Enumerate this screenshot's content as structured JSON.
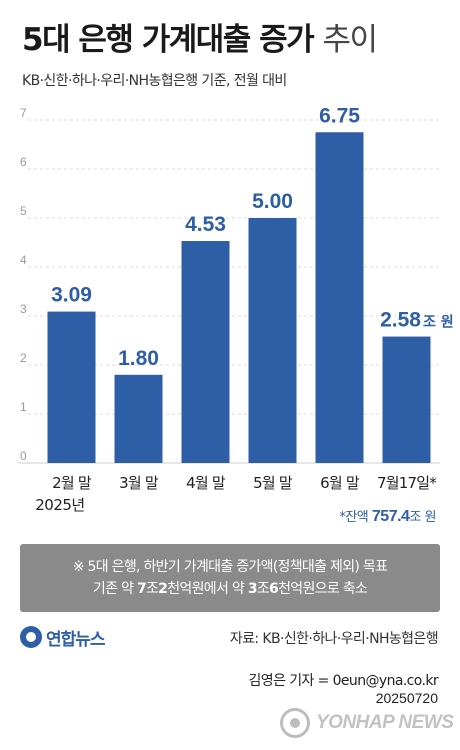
{
  "header": {
    "title_bold": "5대 은행 가계대출 증가",
    "title_light": "추이",
    "subtitle": "KB·신한·하나·우리·NH농협은행 기준, 전월 대비"
  },
  "chart_data": {
    "type": "bar",
    "categories": [
      "2월 말",
      "3월 말",
      "4월 말",
      "5월 말",
      "6월 말",
      "7월17일*"
    ],
    "values": [
      3.09,
      1.8,
      4.53,
      5.0,
      6.75,
      2.58
    ],
    "value_labels": [
      "3.09",
      "1.80",
      "4.53",
      "5.00",
      "6.75",
      "2.58"
    ],
    "last_value_unit": "조 원",
    "yticks": [
      "0",
      "1",
      "2",
      "3",
      "4",
      "5",
      "6",
      "7"
    ],
    "ylim": [
      0,
      7
    ],
    "grid": true,
    "bar_color": "#2e5ea6",
    "year_label": "2025년"
  },
  "balance": {
    "prefix": "*잔액 ",
    "amount": "757.4",
    "unit": "조 원"
  },
  "note": {
    "line1": "※ 5대 은행, 하반기 가계대출 증가액(정책대출 제외) 목표",
    "line2_a": "기존 약 ",
    "line2_b": "7",
    "line2_c": "조",
    "line2_d": "2",
    "line2_e": "천억원에서 약 ",
    "line2_f": "3",
    "line2_g": "조",
    "line2_h": "6",
    "line2_i": "천억원으로 축소"
  },
  "footer": {
    "logo_text": "연합뉴스",
    "source": "자료: KB·신한·하나·우리·NH농협은행",
    "credit": "김영은 기자 = 0eun@yna.co.kr",
    "date": "20250720",
    "watermark": "YONHAP NEWS"
  }
}
